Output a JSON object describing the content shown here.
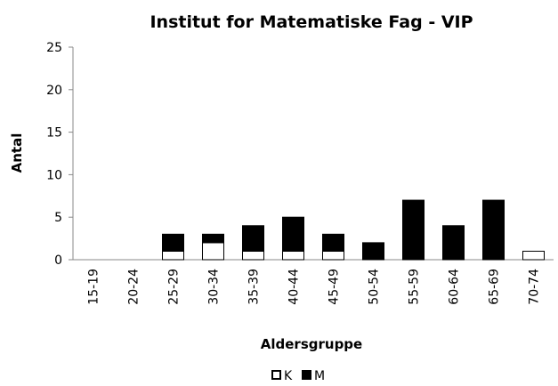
{
  "chart_data": {
    "type": "bar",
    "stacked": true,
    "title": "Institut for Matematiske Fag - VIP",
    "x_label": "Aldersgruppe",
    "y_label": "Antal",
    "categories": [
      "15-19",
      "20-24",
      "25-29",
      "30-34",
      "35-39",
      "40-44",
      "45-49",
      "50-54",
      "55-59",
      "60-64",
      "65-69",
      "70-74"
    ],
    "series": [
      {
        "name": "K",
        "color": "#ffffff",
        "values": [
          0,
          0,
          1,
          2,
          1,
          1,
          1,
          0,
          0,
          0,
          0,
          1
        ]
      },
      {
        "name": "M",
        "color": "#000000",
        "values": [
          0,
          0,
          2,
          1,
          3,
          4,
          2,
          2,
          7,
          4,
          7,
          0
        ]
      }
    ],
    "ylim": [
      0,
      25
    ],
    "yticks": [
      0,
      5,
      10,
      15,
      20,
      25
    ],
    "legend": "bottom"
  }
}
